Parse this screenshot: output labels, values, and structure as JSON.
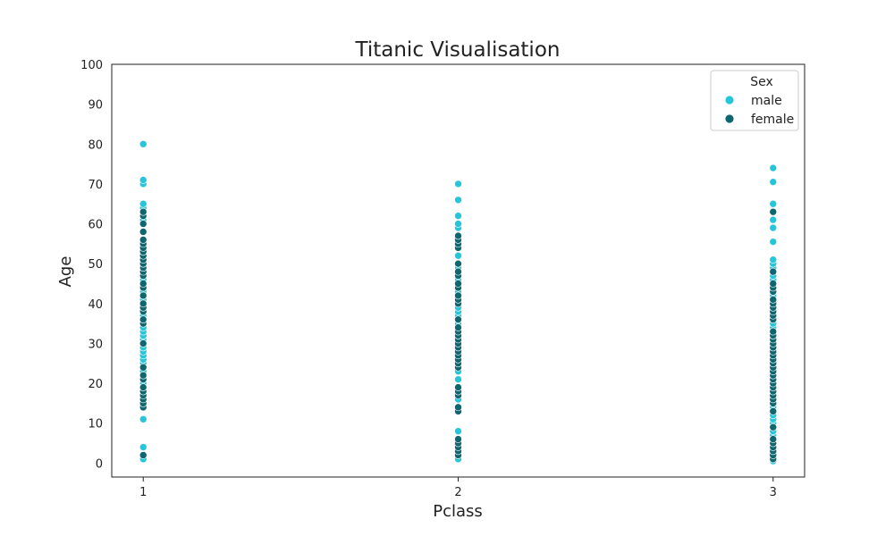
{
  "chart_data": {
    "type": "scatter",
    "title": "Titanic Visualisation",
    "xlabel": "Pclass",
    "ylabel": "Age",
    "xlim": [
      0.9,
      3.1
    ],
    "ylim": [
      -3.5,
      100
    ],
    "xticks": [
      1,
      2,
      3
    ],
    "yticks": [
      0,
      10,
      20,
      30,
      40,
      50,
      60,
      70,
      80,
      90,
      100
    ],
    "grid": false,
    "legend": {
      "title": "Sex",
      "placement": "top-right"
    },
    "series": [
      {
        "name": "male",
        "color": "#26c6da",
        "points": [
          [
            1,
            1
          ],
          [
            1,
            4
          ],
          [
            1,
            11
          ],
          [
            1,
            15
          ],
          [
            1,
            17
          ],
          [
            1,
            18
          ],
          [
            1,
            19
          ],
          [
            1,
            20
          ],
          [
            1,
            22
          ],
          [
            1,
            23
          ],
          [
            1,
            25
          ],
          [
            1,
            26
          ],
          [
            1,
            27
          ],
          [
            1,
            28
          ],
          [
            1,
            29
          ],
          [
            1,
            30
          ],
          [
            1,
            31
          ],
          [
            1,
            32
          ],
          [
            1,
            33
          ],
          [
            1,
            34
          ],
          [
            1,
            35
          ],
          [
            1,
            36
          ],
          [
            1,
            37
          ],
          [
            1,
            38
          ],
          [
            1,
            39
          ],
          [
            1,
            40
          ],
          [
            1,
            41
          ],
          [
            1,
            42
          ],
          [
            1,
            43
          ],
          [
            1,
            44
          ],
          [
            1,
            45
          ],
          [
            1,
            46
          ],
          [
            1,
            47
          ],
          [
            1,
            48
          ],
          [
            1,
            49
          ],
          [
            1,
            50
          ],
          [
            1,
            51
          ],
          [
            1,
            52
          ],
          [
            1,
            54
          ],
          [
            1,
            55
          ],
          [
            1,
            56
          ],
          [
            1,
            58
          ],
          [
            1,
            60
          ],
          [
            1,
            61
          ],
          [
            1,
            62
          ],
          [
            1,
            64
          ],
          [
            1,
            65
          ],
          [
            1,
            70
          ],
          [
            1,
            71
          ],
          [
            1,
            80
          ],
          [
            2,
            1
          ],
          [
            2,
            2
          ],
          [
            2,
            3
          ],
          [
            2,
            8
          ],
          [
            2,
            16
          ],
          [
            2,
            18
          ],
          [
            2,
            19
          ],
          [
            2,
            21
          ],
          [
            2,
            23
          ],
          [
            2,
            24
          ],
          [
            2,
            25
          ],
          [
            2,
            26
          ],
          [
            2,
            27
          ],
          [
            2,
            28
          ],
          [
            2,
            29
          ],
          [
            2,
            30
          ],
          [
            2,
            31
          ],
          [
            2,
            32
          ],
          [
            2,
            33
          ],
          [
            2,
            34
          ],
          [
            2,
            35
          ],
          [
            2,
            36
          ],
          [
            2,
            37
          ],
          [
            2,
            38
          ],
          [
            2,
            39
          ],
          [
            2,
            40
          ],
          [
            2,
            41
          ],
          [
            2,
            42
          ],
          [
            2,
            43
          ],
          [
            2,
            44
          ],
          [
            2,
            45
          ],
          [
            2,
            46
          ],
          [
            2,
            47
          ],
          [
            2,
            48
          ],
          [
            2,
            49
          ],
          [
            2,
            50
          ],
          [
            2,
            52
          ],
          [
            2,
            54
          ],
          [
            2,
            57
          ],
          [
            2,
            59
          ],
          [
            2,
            60
          ],
          [
            2,
            62
          ],
          [
            2,
            66
          ],
          [
            2,
            70
          ],
          [
            3,
            0.5
          ],
          [
            3,
            1
          ],
          [
            3,
            2
          ],
          [
            3,
            3
          ],
          [
            3,
            4
          ],
          [
            3,
            5
          ],
          [
            3,
            6
          ],
          [
            3,
            7
          ],
          [
            3,
            8
          ],
          [
            3,
            9
          ],
          [
            3,
            10
          ],
          [
            3,
            11
          ],
          [
            3,
            12
          ],
          [
            3,
            14
          ],
          [
            3,
            15
          ],
          [
            3,
            16
          ],
          [
            3,
            17
          ],
          [
            3,
            18
          ],
          [
            3,
            19
          ],
          [
            3,
            20
          ],
          [
            3,
            21
          ],
          [
            3,
            22
          ],
          [
            3,
            23
          ],
          [
            3,
            24
          ],
          [
            3,
            25
          ],
          [
            3,
            26
          ],
          [
            3,
            27
          ],
          [
            3,
            28
          ],
          [
            3,
            29
          ],
          [
            3,
            30
          ],
          [
            3,
            31
          ],
          [
            3,
            32
          ],
          [
            3,
            33
          ],
          [
            3,
            34
          ],
          [
            3,
            35
          ],
          [
            3,
            36
          ],
          [
            3,
            37
          ],
          [
            3,
            38
          ],
          [
            3,
            39
          ],
          [
            3,
            40
          ],
          [
            3,
            41
          ],
          [
            3,
            42
          ],
          [
            3,
            43
          ],
          [
            3,
            44
          ],
          [
            3,
            45
          ],
          [
            3,
            46
          ],
          [
            3,
            47
          ],
          [
            3,
            48
          ],
          [
            3,
            49
          ],
          [
            3,
            50
          ],
          [
            3,
            51
          ],
          [
            3,
            55.5
          ],
          [
            3,
            59
          ],
          [
            3,
            61
          ],
          [
            3,
            65
          ],
          [
            3,
            70.5
          ],
          [
            3,
            74
          ]
        ]
      },
      {
        "name": "female",
        "color": "#0e6671",
        "points": [
          [
            1,
            2
          ],
          [
            1,
            14
          ],
          [
            1,
            15
          ],
          [
            1,
            16
          ],
          [
            1,
            17
          ],
          [
            1,
            18
          ],
          [
            1,
            19
          ],
          [
            1,
            21
          ],
          [
            1,
            22
          ],
          [
            1,
            24
          ],
          [
            1,
            30
          ],
          [
            1,
            35
          ],
          [
            1,
            36
          ],
          [
            1,
            38
          ],
          [
            1,
            39
          ],
          [
            1,
            40
          ],
          [
            1,
            42
          ],
          [
            1,
            44
          ],
          [
            1,
            45
          ],
          [
            1,
            47
          ],
          [
            1,
            48
          ],
          [
            1,
            49
          ],
          [
            1,
            50
          ],
          [
            1,
            51
          ],
          [
            1,
            52
          ],
          [
            1,
            53
          ],
          [
            1,
            54
          ],
          [
            1,
            55
          ],
          [
            1,
            56
          ],
          [
            1,
            58
          ],
          [
            1,
            60
          ],
          [
            1,
            62
          ],
          [
            1,
            63
          ],
          [
            2,
            2
          ],
          [
            2,
            3
          ],
          [
            2,
            4
          ],
          [
            2,
            5
          ],
          [
            2,
            6
          ],
          [
            2,
            13
          ],
          [
            2,
            14
          ],
          [
            2,
            17
          ],
          [
            2,
            18
          ],
          [
            2,
            19
          ],
          [
            2,
            24
          ],
          [
            2,
            25
          ],
          [
            2,
            26
          ],
          [
            2,
            27
          ],
          [
            2,
            28
          ],
          [
            2,
            29
          ],
          [
            2,
            30
          ],
          [
            2,
            31
          ],
          [
            2,
            32
          ],
          [
            2,
            33
          ],
          [
            2,
            34
          ],
          [
            2,
            36
          ],
          [
            2,
            40
          ],
          [
            2,
            41
          ],
          [
            2,
            42
          ],
          [
            2,
            44
          ],
          [
            2,
            45
          ],
          [
            2,
            47
          ],
          [
            2,
            48
          ],
          [
            2,
            50
          ],
          [
            2,
            54
          ],
          [
            2,
            55
          ],
          [
            2,
            56
          ],
          [
            2,
            57
          ],
          [
            3,
            1
          ],
          [
            3,
            2
          ],
          [
            3,
            3
          ],
          [
            3,
            4
          ],
          [
            3,
            5
          ],
          [
            3,
            6
          ],
          [
            3,
            9
          ],
          [
            3,
            13
          ],
          [
            3,
            15
          ],
          [
            3,
            16
          ],
          [
            3,
            17
          ],
          [
            3,
            18
          ],
          [
            3,
            19
          ],
          [
            3,
            20
          ],
          [
            3,
            21
          ],
          [
            3,
            22
          ],
          [
            3,
            23
          ],
          [
            3,
            24
          ],
          [
            3,
            25
          ],
          [
            3,
            26
          ],
          [
            3,
            27
          ],
          [
            3,
            28
          ],
          [
            3,
            29
          ],
          [
            3,
            30
          ],
          [
            3,
            31
          ],
          [
            3,
            32
          ],
          [
            3,
            33
          ],
          [
            3,
            36
          ],
          [
            3,
            37
          ],
          [
            3,
            38
          ],
          [
            3,
            39
          ],
          [
            3,
            40
          ],
          [
            3,
            41
          ],
          [
            3,
            43
          ],
          [
            3,
            44
          ],
          [
            3,
            45
          ],
          [
            3,
            48
          ],
          [
            3,
            63
          ]
        ]
      }
    ]
  }
}
